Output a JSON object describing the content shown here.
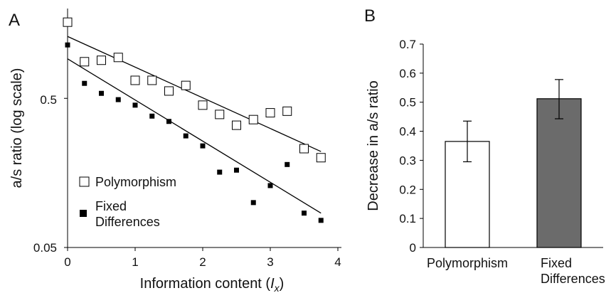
{
  "chart_data": [
    {
      "panel_label": "A",
      "type": "scatter",
      "xlabel": "Information content (",
      "xlabel_var": "I",
      "xlabel_sub": "x",
      "xlabel_close": ")",
      "ylabel": "a/s ratio (log scale)",
      "y_scale": "log",
      "xlim": [
        0,
        4
      ],
      "ylim": [
        0.05,
        2.0
      ],
      "x_ticks": [
        "0",
        "1",
        "2",
        "3",
        "4"
      ],
      "y_ticks": [
        "0.5",
        "0.05"
      ],
      "legend": {
        "placement": "lower-left",
        "entries": [
          {
            "label": "Polymorphism",
            "marker": "open-square"
          },
          {
            "label": "Fixed",
            "label_line2": "Differences",
            "marker": "filled-square"
          }
        ]
      },
      "series": [
        {
          "name": "Polymorphism",
          "marker": "open-square",
          "x": [
            0,
            0.25,
            0.5,
            0.75,
            1.0,
            1.25,
            1.5,
            1.75,
            2.0,
            2.25,
            2.5,
            2.75,
            3.0,
            3.25,
            3.5,
            3.75
          ],
          "y": [
            1.62,
            0.88,
            0.9,
            0.94,
            0.66,
            0.66,
            0.56,
            0.61,
            0.45,
            0.39,
            0.33,
            0.36,
            0.4,
            0.41,
            0.23,
            0.2
          ],
          "fit": [
            [
              0,
              1.3
            ],
            [
              3.75,
              0.22
            ]
          ]
        },
        {
          "name": "Fixed Differences",
          "marker": "filled-square",
          "x": [
            0,
            0.25,
            0.5,
            0.75,
            1.0,
            1.25,
            1.5,
            1.75,
            2.0,
            2.25,
            2.5,
            2.75,
            3.0,
            3.25,
            3.5,
            3.75
          ],
          "y": [
            1.14,
            0.63,
            0.54,
            0.49,
            0.45,
            0.38,
            0.35,
            0.28,
            0.24,
            0.16,
            0.165,
            0.1,
            0.13,
            0.18,
            0.085,
            0.076
          ],
          "fit": [
            [
              0,
              0.92
            ],
            [
              3.75,
              0.085
            ]
          ]
        }
      ]
    },
    {
      "panel_label": "B",
      "type": "bar",
      "ylabel": "Decrease in a/s ratio",
      "ylim": [
        0,
        0.7
      ],
      "y_ticks": [
        "0",
        "0.1",
        "0.2",
        "0.3",
        "0.4",
        "0.5",
        "0.6",
        "0.7"
      ],
      "categories": [
        {
          "line1": "Polymorphism",
          "line2": ""
        },
        {
          "line1": "Fixed",
          "line2": "Differences"
        }
      ],
      "values": [
        0.365,
        0.512
      ],
      "error_low": [
        0.295,
        0.443
      ],
      "error_high": [
        0.435,
        0.578
      ],
      "bar_colors": [
        "#ffffff",
        "#6b6b6b"
      ]
    }
  ]
}
